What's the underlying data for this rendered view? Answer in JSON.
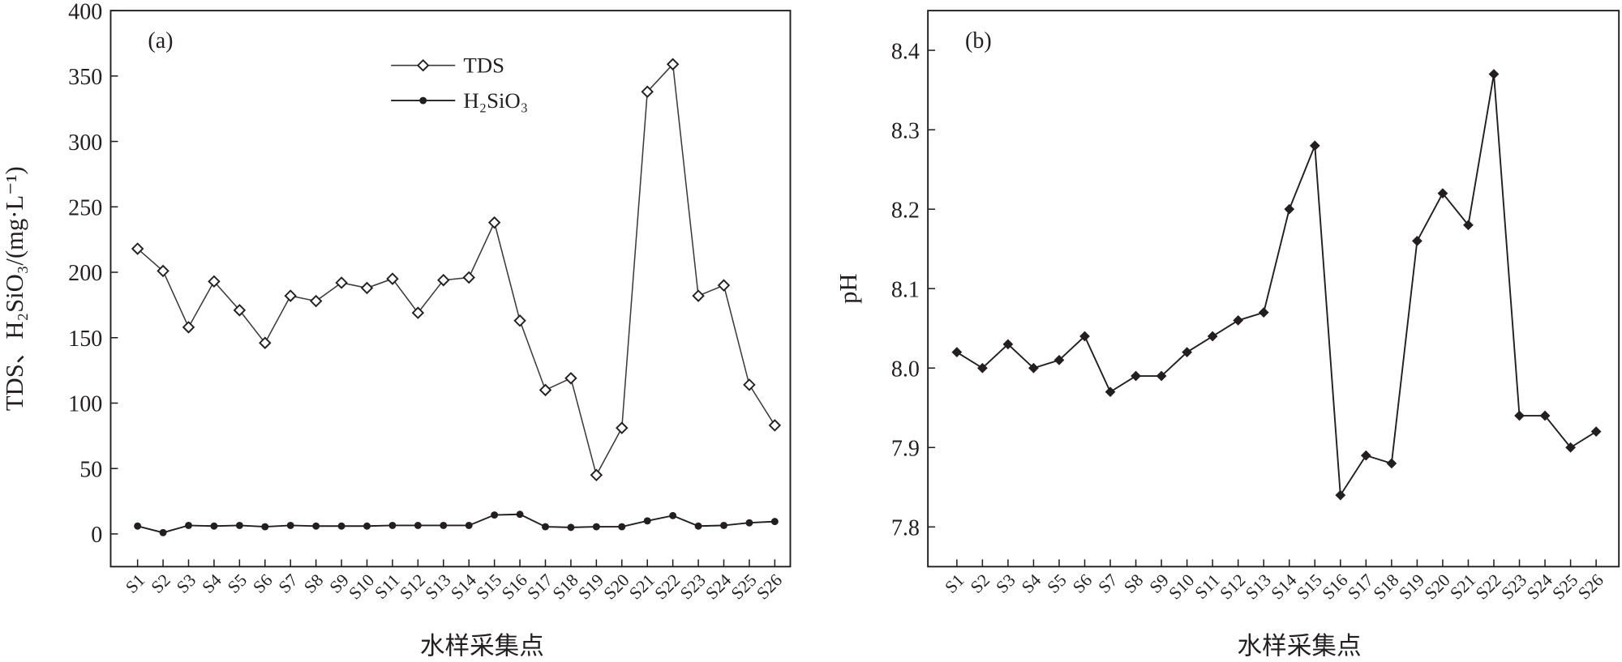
{
  "chart_data": [
    {
      "type": "line",
      "panel_label": "(a)",
      "xlabel": "水样采集点",
      "ylabel": "TDS、H₂SiO₃/(mg·L⁻¹)",
      "categories": [
        "S1",
        "S2",
        "S3",
        "S4",
        "S5",
        "S6",
        "S7",
        "S8",
        "S9",
        "S10",
        "S11",
        "S12",
        "S13",
        "S14",
        "S15",
        "S16",
        "S17",
        "S18",
        "S19",
        "S20",
        "S21",
        "S22",
        "S23",
        "S24",
        "S25",
        "S26"
      ],
      "ylim": [
        -25,
        400
      ],
      "yticks": [
        0,
        50,
        100,
        150,
        200,
        250,
        300,
        350,
        400
      ],
      "legend_position": "top-center",
      "grid": false,
      "series": [
        {
          "name": "TDS",
          "marker": "open-diamond",
          "color": "#3a3a3a",
          "values": [
            218,
            201,
            158,
            193,
            171,
            146,
            182,
            178,
            192,
            188,
            195,
            169,
            194,
            196,
            238,
            163,
            110,
            119,
            45,
            81,
            338,
            359,
            182,
            190,
            114,
            83
          ]
        },
        {
          "name": "H₂SiO₃",
          "marker": "filled-circle",
          "color": "#231f20",
          "values": [
            6,
            1,
            6.5,
            6,
            6.5,
            5.5,
            6.5,
            6,
            6,
            6,
            6.5,
            6.5,
            6.5,
            6.5,
            14.5,
            15,
            5.5,
            5,
            5.5,
            5.5,
            10,
            14,
            6,
            6.5,
            8.5,
            9.5
          ]
        }
      ]
    },
    {
      "type": "line",
      "panel_label": "(b)",
      "xlabel": "水样采集点",
      "ylabel": "pH",
      "categories": [
        "S1",
        "S2",
        "S3",
        "S4",
        "S5",
        "S6",
        "S7",
        "S8",
        "S9",
        "S10",
        "S11",
        "S12",
        "S13",
        "S14",
        "S15",
        "S16",
        "S17",
        "S18",
        "S19",
        "S20",
        "S21",
        "S22",
        "S23",
        "S24",
        "S25",
        "S26"
      ],
      "ylim": [
        7.75,
        8.45
      ],
      "yticks": [
        "7.8",
        "7.9",
        "8.0",
        "8.1",
        "8.2",
        "8.3",
        "8.4"
      ],
      "grid": false,
      "series": [
        {
          "marker": "filled-diamond",
          "color": "#231f20",
          "values": [
            8.02,
            8.0,
            8.03,
            8.0,
            8.01,
            8.04,
            7.97,
            7.99,
            7.99,
            8.02,
            8.04,
            8.06,
            8.07,
            8.2,
            8.28,
            7.84,
            7.89,
            7.88,
            8.16,
            8.22,
            8.18,
            8.37,
            7.94,
            7.94,
            7.9,
            7.92
          ]
        }
      ]
    }
  ]
}
